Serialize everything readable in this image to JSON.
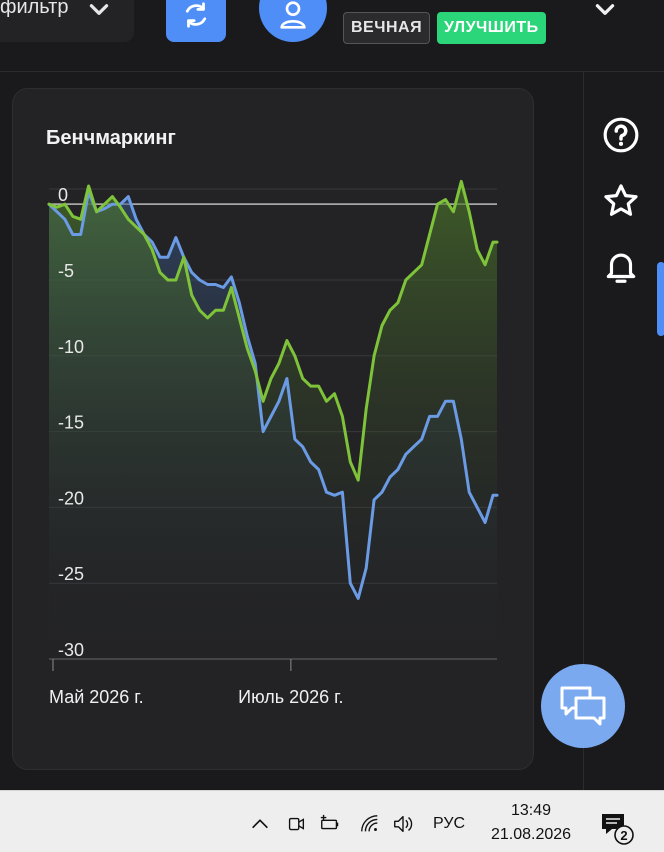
{
  "header": {
    "filter_label": "фильтр",
    "badge_forever": "ВЕЧНАЯ",
    "badge_upgrade": "УЛУЧШИТЬ",
    "accent_color": "#4f8ef7",
    "upgrade_color": "#2bd67b"
  },
  "sidebar": {
    "icons": [
      "help-icon",
      "star-icon",
      "bell-icon"
    ]
  },
  "card": {
    "title": "Бенчмаркинг"
  },
  "chart_data": {
    "type": "area",
    "title": "Бенчмаркинг",
    "xlabel": "",
    "ylabel": "",
    "ylim": [
      -30,
      1
    ],
    "yticks": [
      0,
      -5,
      -10,
      -15,
      -20,
      -25,
      -30
    ],
    "ytick_labels": [
      "0",
      "-5",
      "-10",
      "-15",
      "-20",
      "-25",
      "-30"
    ],
    "xtick_labels": [
      "Май 2026 г.",
      "Июль 2026 г."
    ],
    "xticks": [
      0,
      61
    ],
    "x_range": [
      0,
      113
    ],
    "grid": true,
    "legend": "none",
    "series": [
      {
        "color": "#6b9be5",
        "x": [
          0,
          2,
          4,
          6,
          8,
          10,
          12,
          14,
          16,
          18,
          20,
          22,
          24,
          26,
          28,
          30,
          32,
          34,
          36,
          38,
          40,
          42,
          44,
          46,
          48,
          50,
          52,
          54,
          56,
          58,
          60,
          62,
          64,
          66,
          68,
          70,
          72,
          74,
          76,
          78,
          80,
          82,
          84,
          86,
          88,
          90,
          92,
          94,
          96,
          98,
          100,
          102,
          104,
          106,
          108,
          110,
          112,
          113
        ],
        "values": [
          0,
          -0.5,
          -1,
          -2,
          -2,
          0.8,
          -0.5,
          -0.3,
          0,
          0,
          0.5,
          -1,
          -2,
          -2.5,
          -3.5,
          -3.5,
          -2.2,
          -3.5,
          -4.5,
          -5,
          -5.3,
          -5.3,
          -5.5,
          -4.8,
          -6.5,
          -8.7,
          -10.5,
          -15,
          -14,
          -13,
          -11.5,
          -15.5,
          -16,
          -17,
          -17.5,
          -19,
          -19.2,
          -19,
          -25,
          -26,
          -24,
          -19.5,
          -19,
          -18,
          -17.5,
          -16.5,
          -16,
          -15.5,
          -14,
          -14,
          -13,
          -13,
          -15.5,
          -19,
          -20,
          -21,
          -19.2,
          -19.2
        ]
      },
      {
        "color": "#7ec33a",
        "x": [
          0,
          2,
          4,
          6,
          8,
          10,
          12,
          14,
          16,
          18,
          20,
          22,
          24,
          26,
          28,
          30,
          32,
          34,
          36,
          38,
          40,
          42,
          44,
          46,
          48,
          50,
          52,
          54,
          56,
          58,
          60,
          62,
          64,
          66,
          68,
          70,
          72,
          74,
          76,
          78,
          80,
          82,
          84,
          86,
          88,
          90,
          92,
          94,
          96,
          98,
          100,
          102,
          104,
          106,
          108,
          110,
          112,
          113
        ],
        "values": [
          0,
          -0.2,
          0,
          -0.8,
          -1,
          1.2,
          -0.5,
          0,
          0.5,
          -0.2,
          -1,
          -1.5,
          -2,
          -3,
          -4.5,
          -5,
          -5,
          -3.5,
          -6,
          -7,
          -7.5,
          -7,
          -7,
          -5.5,
          -7.5,
          -9.5,
          -11,
          -13,
          -11.5,
          -10.5,
          -9,
          -10,
          -11.5,
          -12,
          -12,
          -13,
          -12.5,
          -14,
          -17,
          -18.2,
          -13.5,
          -10,
          -8,
          -7,
          -6.5,
          -5,
          -4.5,
          -4,
          -2,
          0,
          0.3,
          -0.5,
          1.5,
          -0.5,
          -3,
          -4,
          -2.5,
          -2.5
        ]
      }
    ]
  },
  "chat_button": {
    "icon": "chat-bubbles-icon"
  },
  "taskbar": {
    "language": "РУС",
    "time": "13:49",
    "date": "21.08.2026",
    "notification_count": "2"
  }
}
